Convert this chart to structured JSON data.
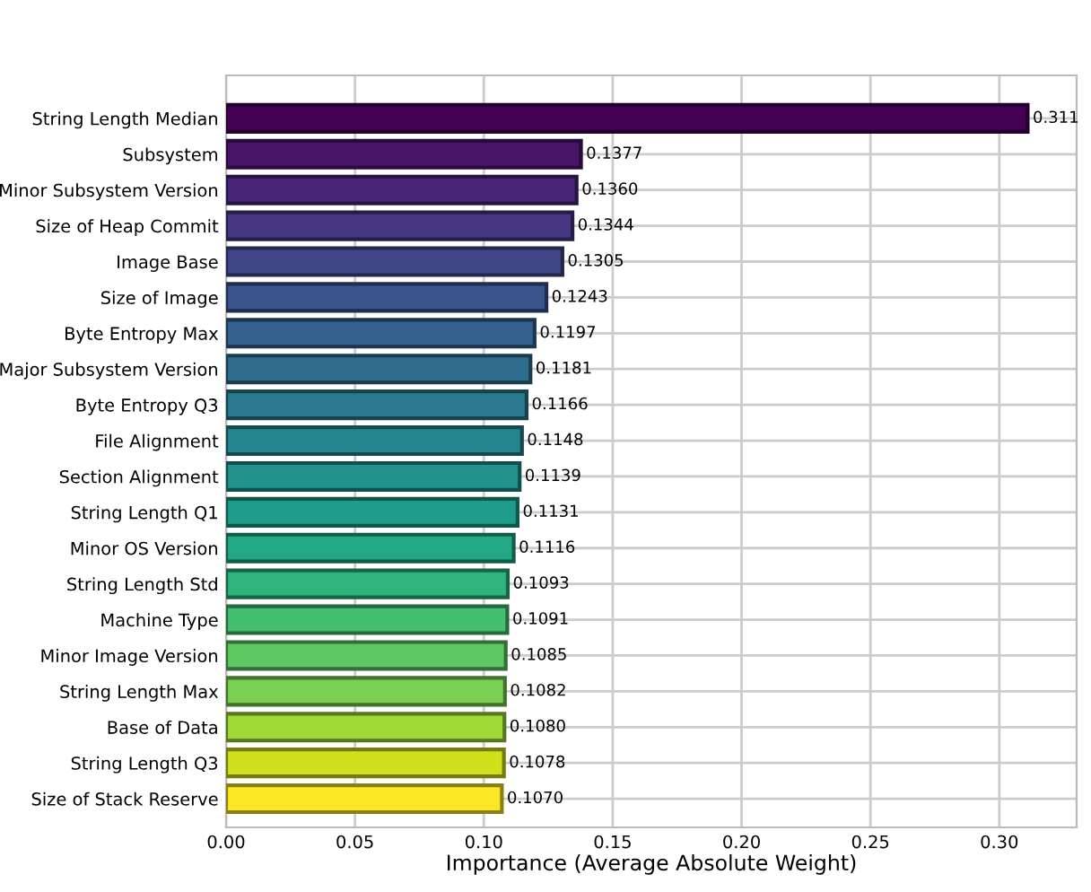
{
  "chart_data": {
    "type": "bar",
    "orientation": "horizontal",
    "xlabel": "Importance (Average Absolute Weight)",
    "categories": [
      "String Length Median",
      "Subsystem",
      "Minor Subsystem Version",
      "Size of Heap Commit",
      "Image Base",
      "Size of Image",
      "Byte Entropy Max",
      "Major Subsystem Version",
      "Byte Entropy Q3",
      "File Alignment",
      "Section Alignment",
      "String Length Q1",
      "Minor OS Version",
      "String Length Std",
      "Machine Type",
      "Minor Image Version",
      "String Length Max",
      "Base of Data",
      "String Length Q3",
      "Size of Stack Reserve"
    ],
    "values": [
      0.311,
      0.1377,
      0.136,
      0.1344,
      0.1305,
      0.1243,
      0.1197,
      0.1181,
      0.1166,
      0.1148,
      0.1139,
      0.1131,
      0.1116,
      0.1093,
      0.1091,
      0.1085,
      0.1082,
      0.108,
      0.1078,
      0.107
    ],
    "value_labels": [
      "0.311",
      "0.1377",
      "0.1360",
      "0.1344",
      "0.1305",
      "0.1243",
      "0.1197",
      "0.1181",
      "0.1166",
      "0.1148",
      "0.1139",
      "0.1131",
      "0.1116",
      "0.1093",
      "0.1091",
      "0.1085",
      "0.1082",
      "0.1080",
      "0.1078",
      "0.1070"
    ],
    "colors": [
      "#440154",
      "#481467",
      "#482576",
      "#453781",
      "#404688",
      "#3a548c",
      "#34618d",
      "#2f6d8e",
      "#2a798e",
      "#25858e",
      "#21918c",
      "#1e9c89",
      "#22a884",
      "#2fb47c",
      "#44bf70",
      "#5ec962",
      "#7ad151",
      "#a0da39",
      "#d0e11c",
      "#fde725"
    ],
    "xlim": [
      0,
      0.33
    ],
    "xticks": [
      {
        "value": 0,
        "label": "0.00"
      },
      {
        "value": 0.05,
        "label": "0.05"
      },
      {
        "value": 0.1,
        "label": "0.10"
      },
      {
        "value": 0.15,
        "label": "0.15"
      },
      {
        "value": 0.2,
        "label": "0.20"
      },
      {
        "value": 0.25,
        "label": "0.25"
      },
      {
        "value": 0.3,
        "label": "0.30"
      }
    ],
    "grid": true
  }
}
